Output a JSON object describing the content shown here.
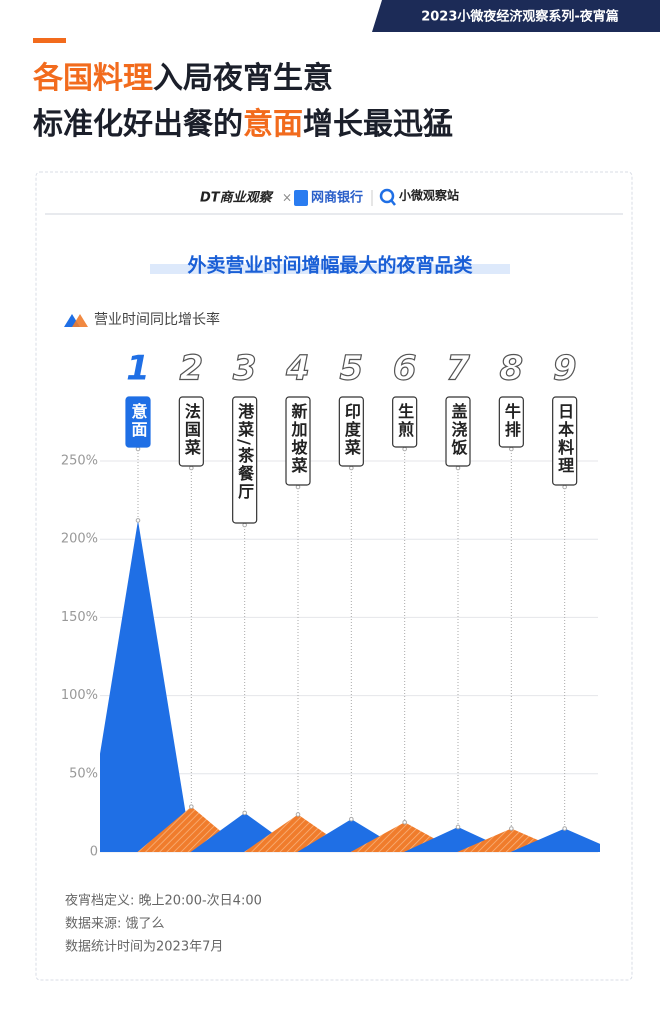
{
  "banner": "2023小微夜经济观察系列-夜宵篇",
  "headline": {
    "highlight_color": "#f26b1d",
    "lines": [
      [
        {
          "text": "各国料理",
          "highlight": true
        },
        {
          "text": "入局夜宵生意",
          "highlight": false
        }
      ],
      [
        {
          "text": "标准化好出餐的",
          "highlight": false
        },
        {
          "text": "意面",
          "highlight": true
        },
        {
          "text": "增长最迅猛",
          "highlight": false
        }
      ]
    ]
  },
  "logos": [
    "DT商业观察",
    "×",
    "网商银行",
    "小微观察站"
  ],
  "chart_data": {
    "type": "triangle",
    "title": "外卖营业时间增幅最大的夜宵品类",
    "categories": [
      "意面",
      "法国菜",
      "港菜/茶餐厅",
      "新加坡菜",
      "印度菜",
      "生煎",
      "盖浇饭",
      "牛排",
      "日本料理"
    ],
    "ranks": [
      1,
      2,
      3,
      4,
      5,
      6,
      7,
      8,
      9
    ],
    "series": [
      {
        "name": "营业时间同比增长率",
        "colors": [
          "#1f6fe5",
          "#f07c2c"
        ],
        "values": [
          212,
          29,
          25,
          24,
          21,
          19,
          16,
          15,
          15
        ]
      }
    ],
    "ylim": [
      0,
      250
    ],
    "yticks": [
      0,
      {
        "value": 50,
        "label": "50%"
      },
      {
        "value": 100,
        "label": "100%"
      },
      {
        "value": 150,
        "label": "150%"
      },
      {
        "value": 200,
        "label": "200%"
      },
      {
        "value": 250,
        "label": "250%"
      }
    ],
    "grid": true,
    "legend": "top-left"
  },
  "footnotes": [
    "夜宵档定义: 晚上20:00-次日4:00",
    "数据来源: 饿了么",
    "数据统计时间为2023年7月"
  ]
}
